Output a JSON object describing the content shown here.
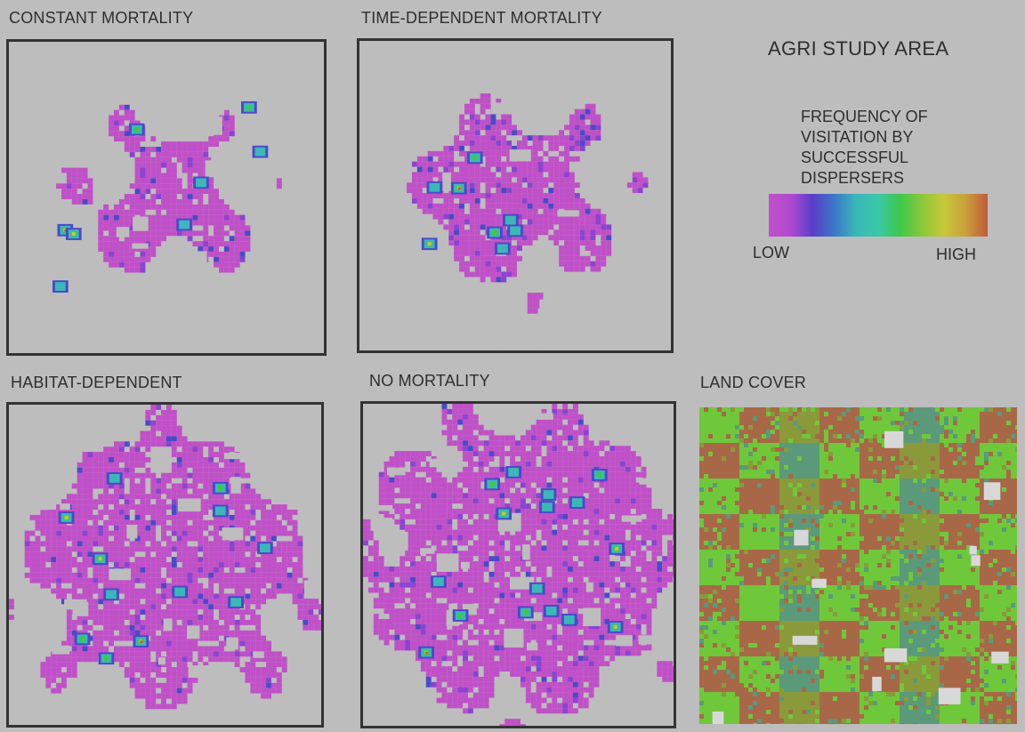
{
  "panels": [
    {
      "id": "constant",
      "label": "CONSTANT MORTALITY",
      "spread": 0.45,
      "hot": 2
    },
    {
      "id": "time",
      "label": "TIME-DEPENDENT MORTALITY",
      "spread": 0.55,
      "hot": 2
    },
    {
      "id": "habitat",
      "label": "HABITAT-DEPENDENT",
      "spread": 0.85,
      "hot": 3
    },
    {
      "id": "none",
      "label": "NO MORTALITY",
      "spread": 0.95,
      "hot": 4
    }
  ],
  "landcover": {
    "label": "LAND COVER"
  },
  "study_area": {
    "title": "AGRI STUDY AREA"
  },
  "legend": {
    "caption_lines": [
      "FREQUENCY OF",
      "VISITATION BY",
      "SUCCESSFUL",
      "DISPERSERS"
    ],
    "low": "LOW",
    "high": "HIGH",
    "colors": [
      "#c050c8",
      "#b04ad0",
      "#5a3ec8",
      "#3a78c8",
      "#3ab8b8",
      "#3ac8a8",
      "#3ec84a",
      "#8ac83a",
      "#c8c83a",
      "#c8a03a",
      "#c05a3a"
    ]
  },
  "colors": {
    "background": "#bdbdbd",
    "magenta": "#c050c8",
    "purple": "#8a44d0",
    "blue": "#4a4ac8",
    "cyan": "#3ab8b8",
    "green": "#3ec84a",
    "yellow": "#c8c83a",
    "red": "#c05a3a",
    "lc_green": "#6ec83a",
    "lc_brown": "#a86848",
    "lc_olive": "#8a9a3a",
    "lc_teal": "#5a9a7a",
    "lc_white": "#d8d8d8"
  }
}
